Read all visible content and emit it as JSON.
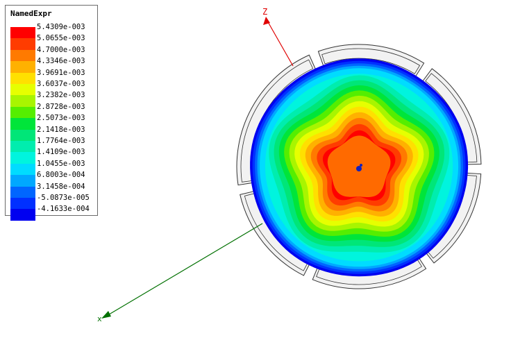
{
  "legend": {
    "title": "NamedExpr",
    "entries": [
      {
        "label": "5.4309e-003",
        "color": "#ff0000"
      },
      {
        "label": "5.0655e-003",
        "color": "#ff3c00"
      },
      {
        "label": "4.7000e-003",
        "color": "#ff7a00"
      },
      {
        "label": "4.3346e-003",
        "color": "#ffb100"
      },
      {
        "label": "3.9691e-003",
        "color": "#ffe000"
      },
      {
        "label": "3.6037e-003",
        "color": "#e6ff00"
      },
      {
        "label": "3.2382e-003",
        "color": "#a8f500"
      },
      {
        "label": "2.8728e-003",
        "color": "#55ee00"
      },
      {
        "label": "2.5073e-003",
        "color": "#00e53a"
      },
      {
        "label": "2.1418e-003",
        "color": "#00e678"
      },
      {
        "label": "1.7764e-003",
        "color": "#00edae"
      },
      {
        "label": "1.4109e-003",
        "color": "#00f4de"
      },
      {
        "label": "1.0455e-003",
        "color": "#00dcff"
      },
      {
        "label": "6.8003e-004",
        "color": "#00a8ff"
      },
      {
        "label": "3.1458e-004",
        "color": "#0066ff"
      },
      {
        "label": "-5.0873e-005",
        "color": "#0030ff"
      },
      {
        "label": "-4.1633e-004",
        "color": "#0000f0"
      }
    ]
  },
  "axes": {
    "z_label": "Z",
    "z_color": "#e00000",
    "x_color": "#007000"
  },
  "ring_color": "#f2f2f2",
  "ring_stroke": "#333333"
}
